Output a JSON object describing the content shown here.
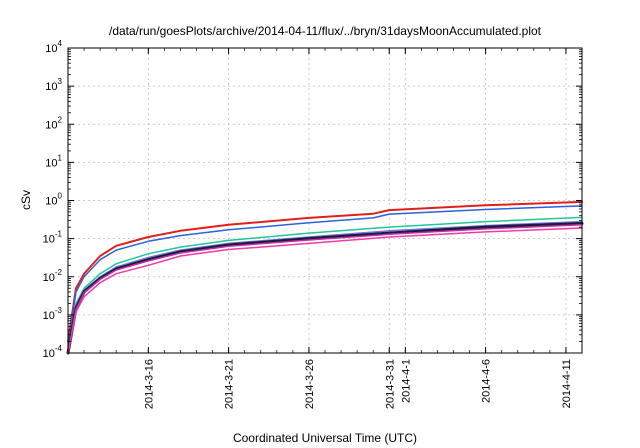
{
  "chart_data": {
    "type": "line",
    "title": "/data/run/goesPlots/archive/2014-04-11/flux/../bryn/31daysMoonAccumulated.plot",
    "xlabel": "Coordinated Universal Time (UTC)",
    "ylabel": "cSv",
    "yscale": "log",
    "ylim": [
      0.0001,
      10000
    ],
    "xlim": [
      "2014-03-11",
      "2014-04-12"
    ],
    "grid": true,
    "y_ticks": [
      {
        "base": "10",
        "exp": "-4",
        "value": 0.0001
      },
      {
        "base": "10",
        "exp": "-3",
        "value": 0.001
      },
      {
        "base": "10",
        "exp": "-2",
        "value": 0.01
      },
      {
        "base": "10",
        "exp": "-1",
        "value": 0.1
      },
      {
        "base": "10",
        "exp": "0",
        "value": 1
      },
      {
        "base": "10",
        "exp": "1",
        "value": 10
      },
      {
        "base": "10",
        "exp": "2",
        "value": 100
      },
      {
        "base": "10",
        "exp": "3",
        "value": 1000
      },
      {
        "base": "10",
        "exp": "4",
        "value": 10000
      }
    ],
    "x_ticks": [
      {
        "date": "2014-03-16",
        "label": "2014-3-16"
      },
      {
        "date": "2014-03-21",
        "label": "2014-3-21"
      },
      {
        "date": "2014-03-26",
        "label": "2014-3-26"
      },
      {
        "date": "2014-03-31",
        "label": "2014-3-31"
      },
      {
        "date": "2014-04-01",
        "label": "2014-4-1"
      },
      {
        "date": "2014-04-06",
        "label": "2014-4-6"
      },
      {
        "date": "2014-04-11",
        "label": "2014-4-11"
      }
    ],
    "series": [
      {
        "color": "#e0201b",
        "width": 2,
        "x": [
          "2014-03-11",
          "2014-03-11T12:00",
          "2014-03-12",
          "2014-03-13",
          "2014-03-14",
          "2014-03-16",
          "2014-03-18",
          "2014-03-21",
          "2014-03-26",
          "2014-03-30",
          "2014-03-31",
          "2014-04-06",
          "2014-04-12"
        ],
        "y": [
          0.0002,
          0.005,
          0.012,
          0.035,
          0.065,
          0.11,
          0.16,
          0.23,
          0.35,
          0.45,
          0.56,
          0.75,
          0.92
        ]
      },
      {
        "color": "#2b62e0",
        "width": 1.5,
        "x": [
          "2014-03-11",
          "2014-03-11T12:00",
          "2014-03-12",
          "2014-03-13",
          "2014-03-14",
          "2014-03-16",
          "2014-03-18",
          "2014-03-21",
          "2014-03-26",
          "2014-03-30",
          "2014-03-31",
          "2014-04-06",
          "2014-04-12"
        ],
        "y": [
          0.00015,
          0.004,
          0.01,
          0.028,
          0.05,
          0.085,
          0.12,
          0.17,
          0.26,
          0.35,
          0.44,
          0.58,
          0.72
        ]
      },
      {
        "color": "#1fc89a",
        "width": 1.5,
        "x": [
          "2014-03-11",
          "2014-03-11T12:00",
          "2014-03-12",
          "2014-03-13",
          "2014-03-14",
          "2014-03-16",
          "2014-03-18",
          "2014-03-21",
          "2014-03-26",
          "2014-03-31",
          "2014-04-06",
          "2014-04-12"
        ],
        "y": [
          0.0001,
          0.002,
          0.005,
          0.012,
          0.022,
          0.04,
          0.06,
          0.09,
          0.14,
          0.2,
          0.28,
          0.36
        ]
      },
      {
        "color": "#7a6fe8",
        "width": 1.5,
        "x": [
          "2014-03-11",
          "2014-03-11T12:00",
          "2014-03-12",
          "2014-03-13",
          "2014-03-14",
          "2014-03-16",
          "2014-03-18",
          "2014-03-21",
          "2014-03-26",
          "2014-03-31",
          "2014-04-06",
          "2014-04-12"
        ],
        "y": [
          0.0001,
          0.0018,
          0.0045,
          0.01,
          0.018,
          0.032,
          0.05,
          0.075,
          0.11,
          0.16,
          0.22,
          0.28
        ]
      },
      {
        "color": "#1c1c3a",
        "width": 3,
        "x": [
          "2014-03-11",
          "2014-03-11T12:00",
          "2014-03-12",
          "2014-03-13",
          "2014-03-14",
          "2014-03-16",
          "2014-03-18",
          "2014-03-21",
          "2014-03-26",
          "2014-03-31",
          "2014-04-06",
          "2014-04-12"
        ],
        "y": [
          0.0001,
          0.0015,
          0.004,
          0.009,
          0.016,
          0.028,
          0.045,
          0.068,
          0.1,
          0.14,
          0.2,
          0.25
        ]
      },
      {
        "color": "#c02fa8",
        "width": 1.5,
        "x": [
          "2014-03-11",
          "2014-03-11T12:00",
          "2014-03-12",
          "2014-03-13",
          "2014-03-14",
          "2014-03-16",
          "2014-03-18",
          "2014-03-21",
          "2014-03-26",
          "2014-03-31",
          "2014-04-06",
          "2014-04-12"
        ],
        "y": [
          0.0001,
          0.0014,
          0.0038,
          0.0085,
          0.015,
          0.026,
          0.042,
          0.063,
          0.092,
          0.13,
          0.18,
          0.23
        ]
      },
      {
        "color": "#f03aa8",
        "width": 1.5,
        "x": [
          "2014-03-11",
          "2014-03-11T12:00",
          "2014-03-12",
          "2014-03-13",
          "2014-03-14",
          "2014-03-16",
          "2014-03-18",
          "2014-03-21",
          "2014-03-26",
          "2014-03-31",
          "2014-04-06",
          "2014-04-12"
        ],
        "y": [
          0.0001,
          0.0012,
          0.003,
          0.007,
          0.012,
          0.02,
          0.035,
          0.052,
          0.075,
          0.11,
          0.15,
          0.19
        ]
      }
    ]
  }
}
